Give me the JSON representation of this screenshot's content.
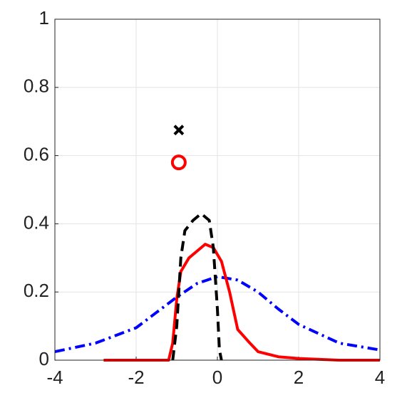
{
  "chart_data": {
    "type": "line",
    "xlim": [
      -4,
      4
    ],
    "ylim": [
      0,
      1
    ],
    "xticks": [
      -4,
      -2,
      0,
      2,
      4
    ],
    "yticks": [
      0,
      0.2,
      0.4,
      0.6,
      0.8,
      1
    ],
    "grid": true,
    "series": [
      {
        "color": "#0000ff",
        "style": "dashdot",
        "x": [
          -4,
          -3,
          -2,
          -1.5,
          -1,
          -0.5,
          0,
          0.5,
          1,
          1.5,
          2,
          3,
          4
        ],
        "values": [
          0.025,
          0.05,
          0.095,
          0.14,
          0.185,
          0.225,
          0.245,
          0.235,
          0.2,
          0.15,
          0.105,
          0.05,
          0.03
        ]
      },
      {
        "color": "#ff0000",
        "style": "solid",
        "x": [
          -2.8,
          -1.2,
          -1.1,
          -1.0,
          -0.9,
          -0.7,
          -0.5,
          -0.3,
          -0.1,
          0.1,
          0.3,
          0.5,
          0.8,
          1,
          1.5,
          2,
          3,
          4
        ],
        "values": [
          0,
          0,
          0.05,
          0.18,
          0.26,
          0.3,
          0.32,
          0.34,
          0.33,
          0.29,
          0.2,
          0.09,
          0.05,
          0.025,
          0.01,
          0.005,
          0,
          0
        ]
      },
      {
        "color": "#000000",
        "style": "dashed",
        "x": [
          -1.1,
          -1.0,
          -0.9,
          -0.8,
          -0.6,
          -0.4,
          -0.2,
          -0.1,
          0,
          0.05,
          0.1
        ],
        "values": [
          0,
          0.1,
          0.3,
          0.38,
          0.41,
          0.43,
          0.41,
          0.33,
          0.15,
          0.03,
          0
        ]
      },
      {
        "color": "#000000",
        "marker": "x",
        "x": [
          -0.95
        ],
        "values": [
          0.675
        ]
      },
      {
        "color": "#ff0000",
        "marker": "o",
        "x": [
          -0.95
        ],
        "values": [
          0.58
        ]
      }
    ]
  }
}
